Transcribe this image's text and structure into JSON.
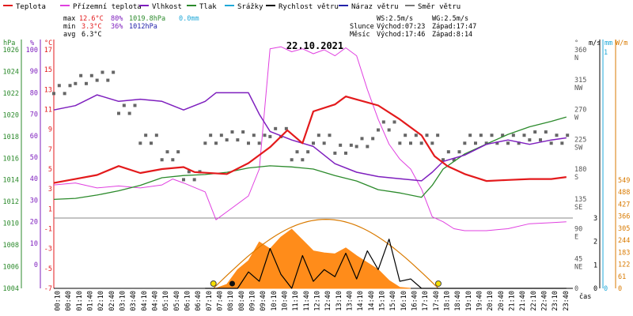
{
  "chart_data": {
    "type": "line",
    "title": "22.10.2021",
    "legend": [
      {
        "name": "Teplota",
        "color": "#e31a1c"
      },
      {
        "name": "Přízemní teplota",
        "color": "#e040e0"
      },
      {
        "name": "Vlhkost",
        "color": "#7e1fbe"
      },
      {
        "name": "Tlak",
        "color": "#2b8a2b"
      },
      {
        "name": "Srážky",
        "color": "#1fa8d8"
      },
      {
        "name": "Rychlost větru",
        "color": "#000000"
      },
      {
        "name": "Náraz větru",
        "color": "#2222aa"
      },
      {
        "name": "Směr větru",
        "color": "#777777"
      }
    ],
    "stats": {
      "rows": [
        {
          "label": "max",
          "temp": "12.6°C",
          "hum": "80%",
          "press": "1019.8hPa",
          "rain": "0.0mm"
        },
        {
          "label": "min",
          "temp": "3.3°C",
          "hum": "36%",
          "press": "1012hPa",
          "rain": ""
        },
        {
          "label": "avg",
          "temp": "6.3°C",
          "hum": "",
          "press": "",
          "rain": ""
        }
      ],
      "ws": "WS:2.5m/s",
      "wg": "WG:2.5m/s",
      "sun": {
        "label": "Slunce",
        "rise": "Východ:07:23",
        "set": "Západ:17:47"
      },
      "moon": {
        "label": "Měsíc",
        "rise": "Východ:17:46",
        "set": "Západ:8:14"
      }
    },
    "units": {
      "hpa": "hPa",
      "pct": "%",
      "degc": "°C",
      "deg": "°",
      "ms": "m/s",
      "mm": "mm",
      "wm": "W/m",
      "time": "čas"
    },
    "axes": {
      "hpa": {
        "ticks": [
          "1026",
          "1024",
          "1022",
          "1020",
          "1018",
          "1016",
          "1014",
          "1012",
          "1010",
          "1008",
          "1006",
          "1004"
        ]
      },
      "pct": {
        "ticks": [
          "100",
          "90",
          "80",
          "70",
          "60",
          "50",
          "40",
          "30",
          "20",
          "10",
          "0"
        ]
      },
      "temp": {
        "ticks": [
          "17",
          "15",
          "13",
          "11",
          "9",
          "7",
          "5",
          "3",
          "1",
          "-1",
          "-3",
          "-5",
          "-7"
        ]
      },
      "dir": {
        "ticks": [
          "360",
          "N",
          "315",
          "NW",
          "270",
          "W",
          "225",
          "SW",
          "180",
          "S",
          "135",
          "SE",
          "90",
          "E",
          "45",
          "NE",
          "0"
        ]
      },
      "speed": {
        "ticks": [
          "3",
          "2",
          "1",
          "0"
        ]
      },
      "rain": {
        "ticks": [
          "1",
          "0"
        ]
      },
      "solar": {
        "ticks": [
          "549",
          "488",
          "427",
          "366",
          "305",
          "244",
          "183",
          "122",
          "61",
          "0"
        ]
      },
      "x": {
        "ticks": [
          "00:10",
          "00:40",
          "01:10",
          "01:40",
          "02:10",
          "02:40",
          "03:10",
          "03:40",
          "04:10",
          "04:40",
          "05:10",
          "05:40",
          "06:10",
          "06:40",
          "07:10",
          "07:40",
          "08:10",
          "08:40",
          "09:10",
          "09:40",
          "10:10",
          "10:40",
          "11:10",
          "11:40",
          "12:10",
          "12:40",
          "13:10",
          "13:40",
          "14:10",
          "14:40",
          "15:10",
          "15:40",
          "16:10",
          "16:40",
          "17:10",
          "17:40",
          "18:10",
          "18:40",
          "19:10",
          "19:40",
          "20:10",
          "20:40",
          "21:10",
          "21:40",
          "22:10",
          "22:40",
          "23:10",
          "23:40"
        ]
      }
    },
    "series": {
      "temperature": [
        [
          0,
          3.6
        ],
        [
          1,
          4.0
        ],
        [
          2,
          4.4
        ],
        [
          3,
          5.3
        ],
        [
          4,
          4.6
        ],
        [
          5,
          5.0
        ],
        [
          6,
          5.2
        ],
        [
          6.5,
          4.7
        ],
        [
          8,
          4.5
        ],
        [
          9,
          5.6
        ],
        [
          10,
          7.2
        ],
        [
          10.8,
          8.9
        ],
        [
          11.5,
          7.6
        ],
        [
          12,
          10.8
        ],
        [
          13,
          11.5
        ],
        [
          13.5,
          12.3
        ],
        [
          14,
          12.0
        ],
        [
          15,
          11.4
        ],
        [
          16,
          10.0
        ],
        [
          17,
          8.4
        ],
        [
          17.6,
          6.3
        ],
        [
          18.2,
          5.3
        ],
        [
          19,
          4.5
        ],
        [
          20,
          3.8
        ],
        [
          21,
          3.9
        ],
        [
          22,
          4.0
        ],
        [
          23,
          4.0
        ],
        [
          23.7,
          4.2
        ]
      ],
      "ground_temp": [
        [
          0,
          3.4
        ],
        [
          1,
          3.6
        ],
        [
          2,
          3.1
        ],
        [
          3,
          3.3
        ],
        [
          4,
          3.1
        ],
        [
          5,
          3.4
        ],
        [
          5.5,
          4.0
        ],
        [
          6,
          3.6
        ],
        [
          7,
          2.7
        ],
        [
          7.5,
          -0.1
        ],
        [
          8,
          0.7
        ],
        [
          9,
          2.3
        ],
        [
          9.5,
          5.0
        ],
        [
          10,
          17.1
        ],
        [
          10.5,
          17.3
        ],
        [
          11,
          16.8
        ],
        [
          11.5,
          17.1
        ],
        [
          12,
          16.6
        ],
        [
          12.5,
          17.0
        ],
        [
          13,
          16.4
        ],
        [
          13.5,
          17.2
        ],
        [
          14,
          16.4
        ],
        [
          14.5,
          13.0
        ],
        [
          15,
          10.0
        ],
        [
          15.5,
          7.5
        ],
        [
          16,
          6.0
        ],
        [
          16.5,
          5.0
        ],
        [
          17,
          3.0
        ],
        [
          17.5,
          0.2
        ],
        [
          18,
          -0.3
        ],
        [
          18.5,
          -1.0
        ],
        [
          19,
          -1.2
        ],
        [
          20,
          -1.2
        ],
        [
          21,
          -1.0
        ],
        [
          22,
          -0.5
        ],
        [
          23,
          -0.4
        ],
        [
          23.7,
          -0.3
        ]
      ],
      "humidity": [
        [
          0,
          72
        ],
        [
          1,
          74
        ],
        [
          2,
          79
        ],
        [
          3,
          76
        ],
        [
          4,
          77
        ],
        [
          5,
          76
        ],
        [
          6,
          72
        ],
        [
          7,
          76
        ],
        [
          7.5,
          80
        ],
        [
          8,
          80
        ],
        [
          9,
          80
        ],
        [
          9.5,
          70
        ],
        [
          10,
          62
        ],
        [
          11,
          58
        ],
        [
          12,
          55
        ],
        [
          13,
          47
        ],
        [
          14,
          43
        ],
        [
          15,
          41
        ],
        [
          16,
          40
        ],
        [
          17,
          39
        ],
        [
          17.5,
          43
        ],
        [
          18,
          48
        ],
        [
          19,
          51
        ],
        [
          20,
          56
        ],
        [
          21,
          58
        ],
        [
          22,
          56
        ],
        [
          23,
          58
        ],
        [
          23.7,
          59
        ]
      ],
      "pressure": [
        [
          0,
          1012.2
        ],
        [
          1,
          1012.3
        ],
        [
          2,
          1012.6
        ],
        [
          3,
          1013.0
        ],
        [
          4,
          1013.5
        ],
        [
          5,
          1014.2
        ],
        [
          6,
          1014.4
        ],
        [
          7,
          1014.5
        ],
        [
          8,
          1014.7
        ],
        [
          9,
          1015.1
        ],
        [
          10,
          1015.3
        ],
        [
          11,
          1015.2
        ],
        [
          12,
          1015.0
        ],
        [
          13,
          1014.4
        ],
        [
          14,
          1013.9
        ],
        [
          15,
          1013.1
        ],
        [
          16,
          1012.8
        ],
        [
          17,
          1012.4
        ],
        [
          17.5,
          1013.5
        ],
        [
          18,
          1015.0
        ],
        [
          19,
          1016.4
        ],
        [
          20,
          1017.3
        ],
        [
          21,
          1018.2
        ],
        [
          22,
          1018.9
        ],
        [
          23,
          1019.4
        ],
        [
          23.7,
          1019.8
        ]
      ],
      "solar": [
        [
          7.5,
          0
        ],
        [
          8,
          20
        ],
        [
          8.5,
          95
        ],
        [
          9,
          140
        ],
        [
          9.5,
          235
        ],
        [
          10,
          200
        ],
        [
          10.5,
          260
        ],
        [
          11,
          300
        ],
        [
          11.5,
          245
        ],
        [
          12,
          190
        ],
        [
          12.5,
          180
        ],
        [
          13,
          175
        ],
        [
          13.5,
          205
        ],
        [
          14,
          165
        ],
        [
          14.5,
          130
        ],
        [
          15,
          95
        ],
        [
          15.5,
          40
        ],
        [
          16,
          5
        ],
        [
          16.5,
          0
        ]
      ],
      "wind_speed": [
        [
          7,
          0
        ],
        [
          8.5,
          0
        ],
        [
          9,
          0.7
        ],
        [
          9.5,
          0.3
        ],
        [
          10,
          1.7
        ],
        [
          10.5,
          0.6
        ],
        [
          11,
          0
        ],
        [
          11.5,
          1.4
        ],
        [
          12,
          0.3
        ],
        [
          12.5,
          0.8
        ],
        [
          13,
          0.5
        ],
        [
          13.5,
          1.5
        ],
        [
          14,
          0.4
        ],
        [
          14.5,
          1.6
        ],
        [
          15,
          0.8
        ],
        [
          15.5,
          2.1
        ],
        [
          16,
          0.3
        ],
        [
          16.5,
          0.4
        ],
        [
          17,
          0
        ],
        [
          23.7,
          0
        ]
      ]
    },
    "wind_dir_points": [
      [
        0,
        300
      ],
      [
        1,
        315
      ],
      [
        2,
        320
      ],
      [
        3,
        270
      ],
      [
        4,
        225
      ],
      [
        5,
        200
      ],
      [
        6,
        170
      ],
      [
        7,
        225
      ],
      [
        8,
        230
      ],
      [
        9,
        225
      ],
      [
        10,
        235
      ],
      [
        11,
        200
      ],
      [
        12,
        225
      ],
      [
        13,
        210
      ],
      [
        14,
        220
      ],
      [
        15,
        245
      ],
      [
        16,
        225
      ],
      [
        17,
        225
      ],
      [
        18,
        200
      ],
      [
        19,
        225
      ],
      [
        20,
        225
      ],
      [
        21,
        225
      ],
      [
        22,
        230
      ],
      [
        23,
        225
      ]
    ],
    "sun_curve": {
      "start": 7.38,
      "end": 17.78,
      "peak": 350
    },
    "events": [
      {
        "t": 7.38,
        "type": "sunrise"
      },
      {
        "t": 8.25,
        "type": "moonset"
      },
      {
        "t": 17.77,
        "type": "moonrise"
      },
      {
        "t": 17.78,
        "type": "sunset"
      }
    ]
  }
}
